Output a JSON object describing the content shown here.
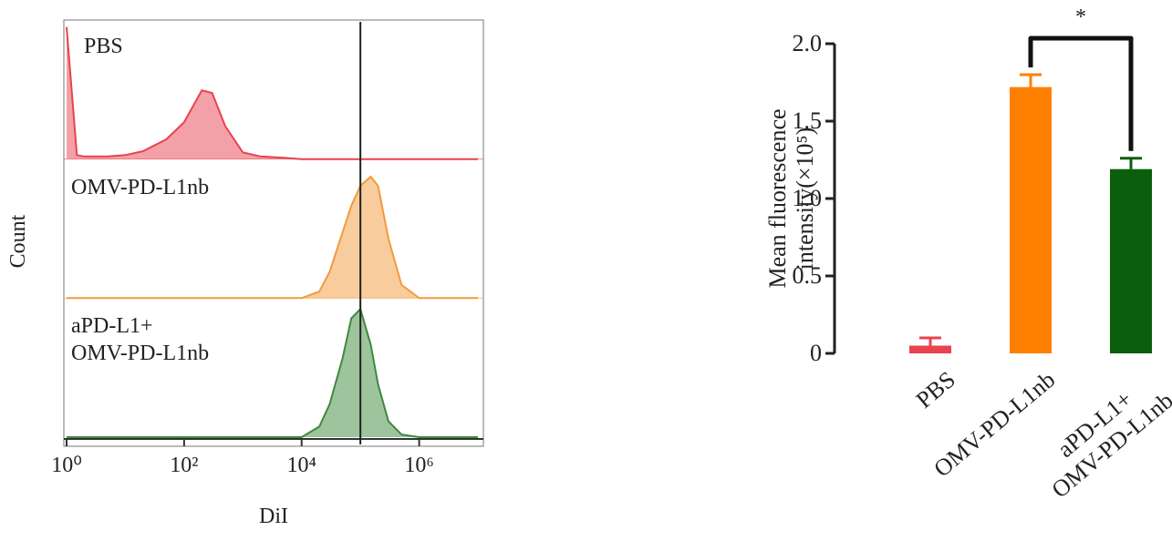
{
  "chart_data": [
    {
      "type": "density",
      "xlabel": "DiI",
      "ylabel": "Count",
      "xscale": "log",
      "xlim": [
        1,
        10000000
      ],
      "xticks": [
        {
          "value": 1,
          "label": "10⁰"
        },
        {
          "value": 100,
          "label": "10²"
        },
        {
          "value": 10000,
          "label": "10⁴"
        },
        {
          "value": 1000000,
          "label": "10⁶"
        }
      ],
      "ylim": [
        0,
        100
      ],
      "x": [
        1,
        1.5,
        2,
        5,
        10,
        20,
        50,
        100,
        200,
        300,
        500,
        1000,
        2000,
        5000,
        10000,
        20000,
        30000,
        50000,
        70000,
        100000,
        150000,
        200000,
        300000,
        500000,
        1000000,
        10000000
      ],
      "series": [
        {
          "name": "PBS",
          "color": "#e8434f",
          "values": [
            100,
            3,
            2,
            2,
            3,
            6,
            15,
            28,
            52,
            50,
            25,
            5,
            2,
            1,
            0,
            0,
            0,
            0,
            0,
            0,
            0,
            0,
            0,
            0,
            0,
            0
          ]
        },
        {
          "name": "OMV-PD-L1nb",
          "color": "#f29a3c",
          "values": [
            0,
            0,
            0,
            0,
            0,
            0,
            0,
            0,
            0,
            0,
            0,
            0,
            0,
            0,
            0,
            5,
            20,
            50,
            70,
            85,
            92,
            85,
            45,
            10,
            0,
            0
          ]
        },
        {
          "name": "aPD-L1+\nOMV-PD-L1nb",
          "color": "#3d8a3d",
          "values": [
            0,
            0,
            0,
            0,
            0,
            0,
            0,
            0,
            0,
            0,
            0,
            0,
            0,
            0,
            0,
            8,
            25,
            60,
            90,
            97,
            70,
            40,
            12,
            2,
            0,
            0
          ]
        }
      ],
      "marker_x": 100000
    },
    {
      "type": "bar",
      "ylabel": "Mean fluorescence\nintensity(×10⁵)",
      "categories": [
        "PBS",
        "OMV-PD-L1nb",
        "aPD-L1+\nOMV-PD-L1nb"
      ],
      "values": [
        0.05,
        1.72,
        1.19
      ],
      "errors": [
        0.05,
        0.08,
        0.07
      ],
      "colors": [
        "#e8434f",
        "#ff7f00",
        "#0b5e0b"
      ],
      "ylim": [
        0,
        2.0
      ],
      "yticks": [
        0,
        0.5,
        {
          "value": 1.0,
          "label": "1.0"
        },
        1.5,
        {
          "value": 2.0,
          "label": "2.0"
        }
      ],
      "annotation": "*",
      "bracket": [
        1,
        2
      ]
    }
  ]
}
